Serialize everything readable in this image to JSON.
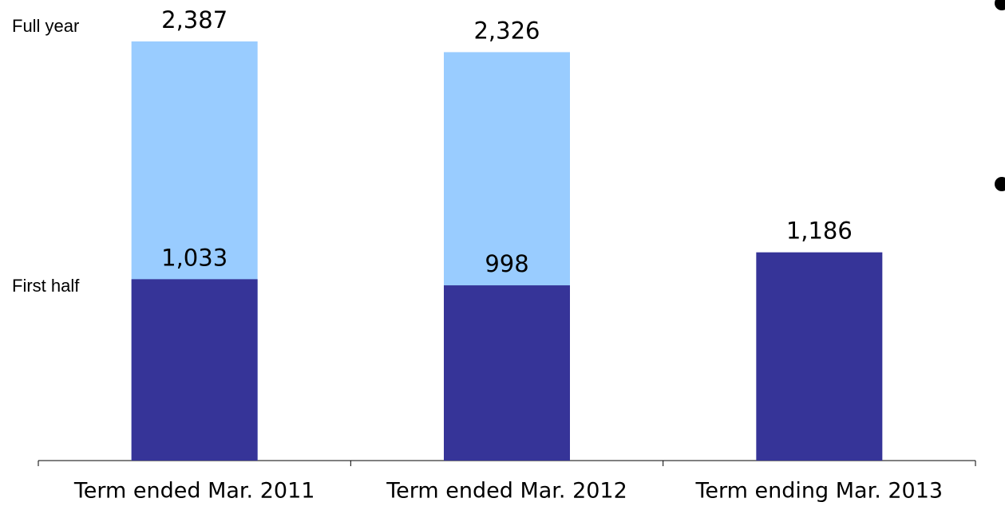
{
  "chart_data": {
    "type": "bar",
    "categories": [
      "Term ended Mar. 2011",
      "Term ended Mar. 2012",
      "Term ending Mar. 2013"
    ],
    "series": [
      {
        "name": "Full year",
        "color": "#99ccff",
        "values": [
          2387,
          2326,
          null
        ],
        "value_labels": [
          "2,387",
          "2,326",
          null
        ]
      },
      {
        "name": "First half",
        "color": "#363498",
        "values": [
          1033,
          998,
          1186
        ],
        "value_labels": [
          "1,033",
          "998",
          "1,186"
        ]
      }
    ]
  }
}
